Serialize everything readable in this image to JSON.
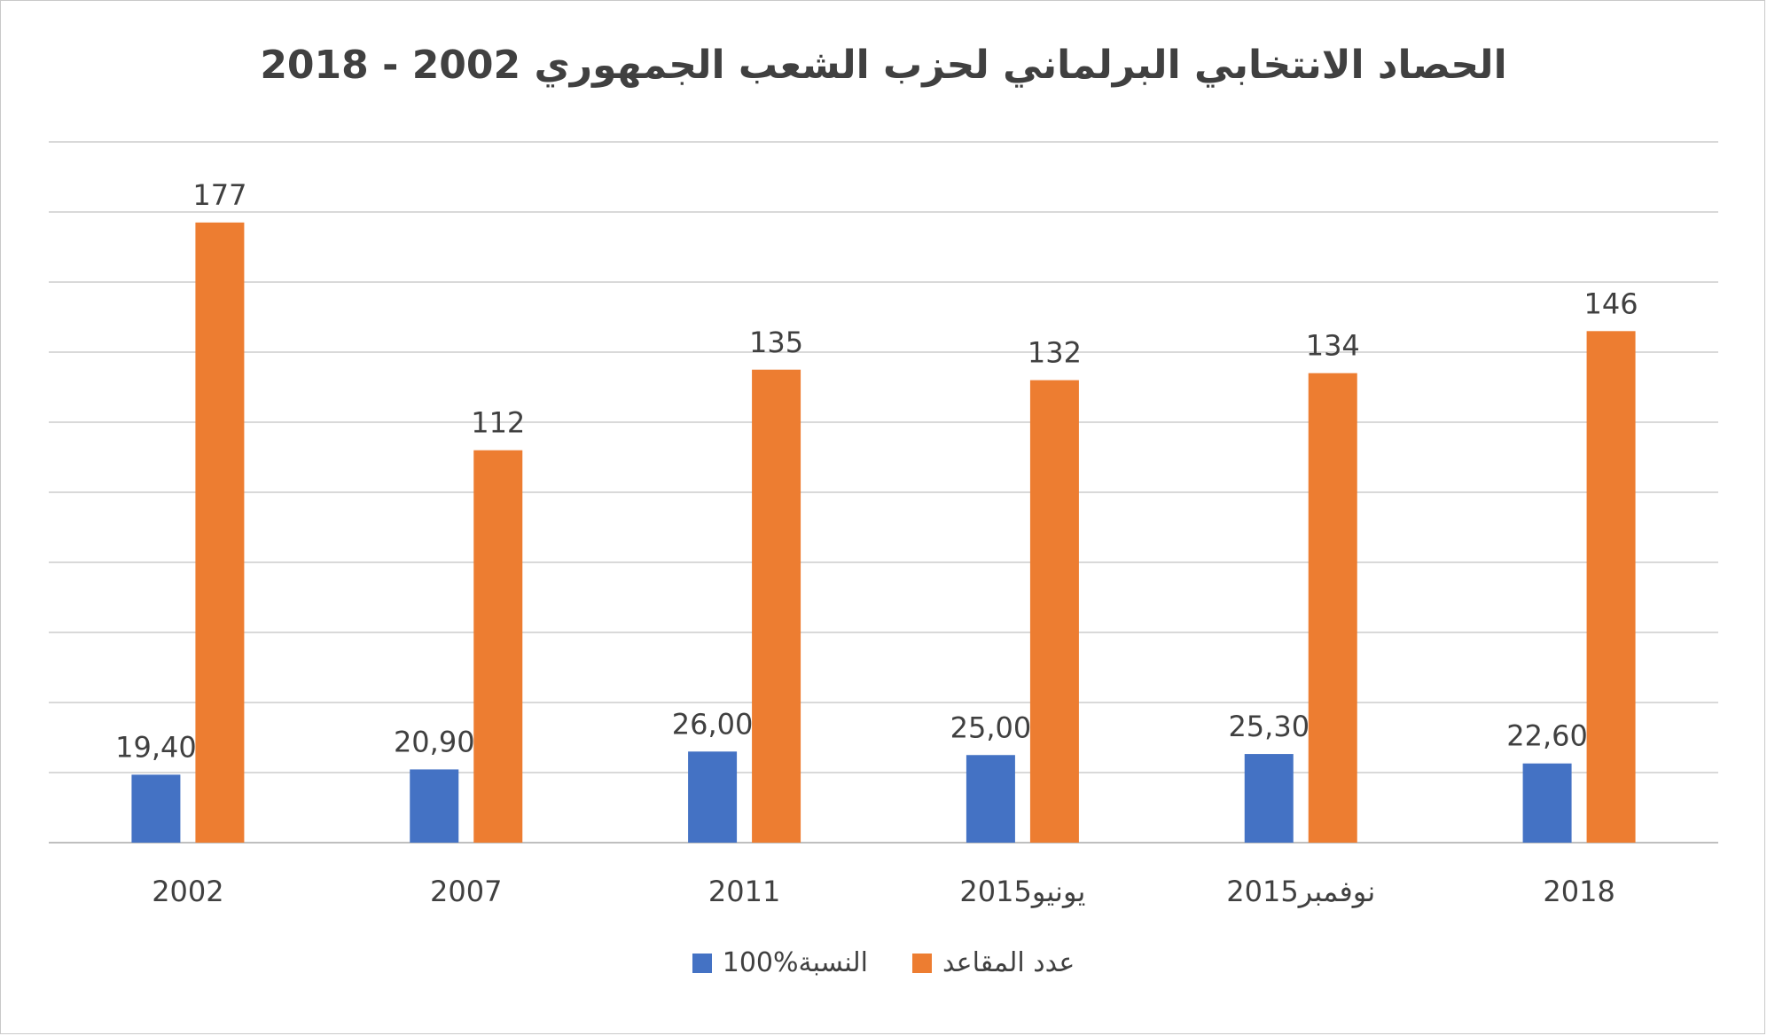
{
  "chart_data": {
    "type": "bar",
    "title": "الحصاد الانتخابي البرلماني لحزب الشعب الجمهوري 2002 - 2018",
    "categories": [
      "2002",
      "2007",
      "2011",
      "يونيو2015",
      "نوفمبر2015",
      "2018"
    ],
    "series": [
      {
        "name": "النسبة%100",
        "color": "#4472C4",
        "values": [
          19.4,
          20.9,
          26.0,
          25.0,
          25.3,
          22.6
        ],
        "labels": [
          "19,40",
          "20,90",
          "26,00",
          "25,00",
          "25,30",
          "22,60"
        ]
      },
      {
        "name": "عدد المقاعد",
        "color": "#ED7D31",
        "values": [
          177,
          112,
          135,
          132,
          134,
          146
        ],
        "labels": [
          "177",
          "112",
          "135",
          "132",
          "134",
          "146"
        ]
      }
    ],
    "ylim": [
      0,
      200
    ],
    "grid": true,
    "legend": "bottom-center",
    "y_tick_labels_shown": false
  }
}
